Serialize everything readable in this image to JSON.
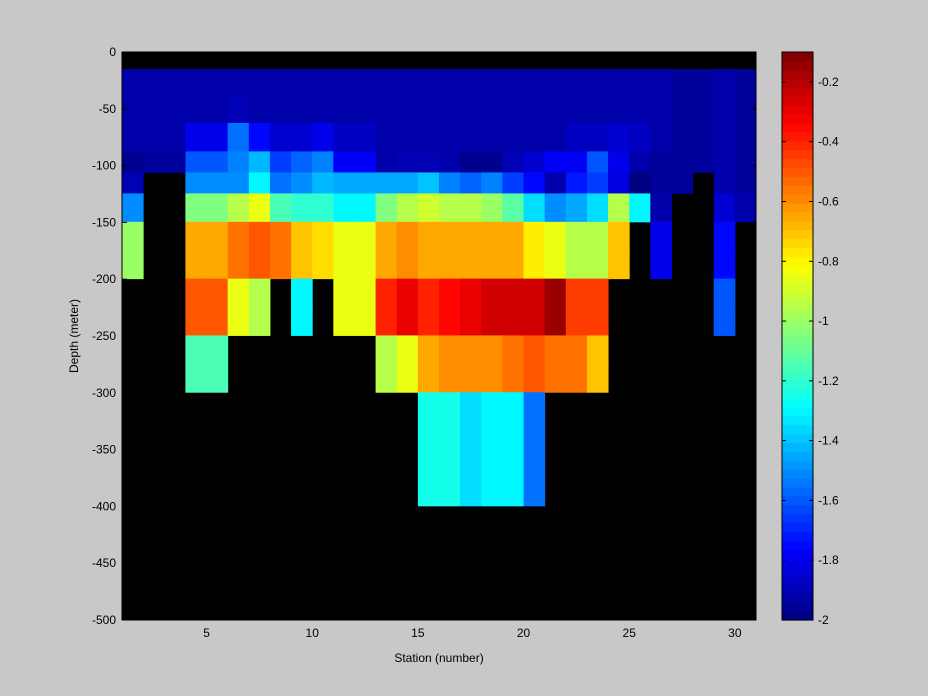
{
  "chart_data": {
    "type": "heatmap",
    "xlabel": "Station (number)",
    "ylabel": "Depth (meter)",
    "xlim": [
      1,
      31
    ],
    "ylim": [
      -500,
      0
    ],
    "xticks": [
      5,
      10,
      15,
      20,
      25,
      30
    ],
    "yticks": [
      0,
      -50,
      -100,
      -150,
      -200,
      -250,
      -300,
      -350,
      -400,
      -450,
      -500
    ],
    "colorbar": {
      "colormap": "jet",
      "clim": [
        -2.0,
        -0.1
      ],
      "ticks": [
        -0.2,
        -0.4,
        -0.6,
        -0.8,
        -1,
        -1.2,
        -1.4,
        -1.6,
        -1.8,
        -2
      ]
    },
    "no_data_color": "#000000",
    "stations": [
      1,
      2,
      3,
      4,
      5,
      6,
      7,
      8,
      9,
      10,
      11,
      12,
      13,
      14,
      15,
      16,
      17,
      18,
      19,
      20,
      21,
      22,
      23,
      24,
      25,
      26,
      27,
      28,
      29,
      30
    ],
    "depths": [
      -5,
      -25,
      -50,
      -75,
      -100,
      -112,
      -137,
      -162,
      -187,
      -212,
      -237,
      -262,
      -287,
      -312,
      -337,
      -362,
      -387
    ],
    "values": [
      [
        null,
        null,
        null,
        null,
        null,
        null,
        null,
        null,
        null,
        null,
        null,
        null,
        null,
        null,
        null,
        null,
        null,
        null,
        null,
        null,
        null,
        null,
        null,
        null,
        null,
        null,
        null,
        null,
        null,
        null
      ],
      [
        -1.92,
        -1.92,
        -1.92,
        -1.92,
        -1.92,
        -1.92,
        -1.92,
        -1.92,
        -1.92,
        -1.92,
        -1.92,
        -1.92,
        -1.92,
        -1.92,
        -1.92,
        -1.92,
        -1.92,
        -1.92,
        -1.92,
        -1.92,
        -1.92,
        -1.92,
        -1.92,
        -1.92,
        -1.92,
        -1.92,
        -1.95,
        -1.95,
        -1.92,
        -1.95
      ],
      [
        -1.92,
        -1.92,
        -1.92,
        -1.92,
        -1.92,
        -1.9,
        -1.92,
        -1.92,
        -1.92,
        -1.92,
        -1.92,
        -1.92,
        -1.92,
        -1.92,
        -1.92,
        -1.92,
        -1.92,
        -1.92,
        -1.92,
        -1.92,
        -1.92,
        -1.92,
        -1.92,
        -1.92,
        -1.92,
        -1.92,
        -1.95,
        -1.95,
        -1.92,
        -1.95
      ],
      [
        -1.92,
        -1.92,
        -1.92,
        -1.8,
        -1.8,
        -1.55,
        -1.75,
        -1.85,
        -1.85,
        -1.8,
        -1.88,
        -1.88,
        -1.92,
        -1.92,
        -1.92,
        -1.92,
        -1.92,
        -1.92,
        -1.92,
        -1.92,
        -1.92,
        -1.88,
        -1.88,
        -1.85,
        -1.88,
        -1.92,
        -1.95,
        -1.95,
        -1.92,
        -1.95
      ],
      [
        -1.97,
        -1.95,
        -1.95,
        -1.6,
        -1.6,
        -1.52,
        -1.42,
        -1.65,
        -1.58,
        -1.52,
        -1.78,
        -1.78,
        -1.92,
        -1.9,
        -1.9,
        -1.92,
        -1.97,
        -1.97,
        -1.9,
        -1.85,
        -1.78,
        -1.78,
        -1.6,
        -1.8,
        -1.92,
        -1.95,
        -1.95,
        -1.95,
        -1.92,
        -1.95
      ],
      [
        -1.9,
        null,
        null,
        -1.5,
        -1.5,
        -1.5,
        -1.3,
        -1.55,
        -1.5,
        -1.42,
        -1.45,
        -1.45,
        -1.45,
        -1.45,
        -1.4,
        -1.52,
        -1.58,
        -1.52,
        -1.65,
        -1.75,
        -1.92,
        -1.72,
        -1.65,
        -1.82,
        -2.0,
        -1.95,
        -1.95,
        null,
        -1.92,
        -1.95
      ],
      [
        -1.5,
        null,
        null,
        -1.05,
        -1.05,
        -0.95,
        -0.85,
        -1.15,
        -1.2,
        -1.2,
        -1.3,
        -1.3,
        -1.05,
        -0.95,
        -0.9,
        -0.95,
        -0.95,
        -1.0,
        -1.12,
        -1.35,
        -1.5,
        -1.45,
        -1.35,
        -0.95,
        -1.3,
        -1.92,
        null,
        null,
        -1.85,
        -1.92
      ],
      [
        -1.0,
        null,
        null,
        -0.65,
        -0.65,
        -0.55,
        -0.5,
        -0.55,
        -0.7,
        -0.75,
        -0.85,
        -0.85,
        -0.65,
        -0.6,
        -0.65,
        -0.65,
        -0.65,
        -0.65,
        -0.65,
        -0.78,
        -0.85,
        -0.95,
        -0.95,
        -0.7,
        null,
        -1.8,
        null,
        null,
        -1.75,
        null
      ],
      [
        -1.0,
        null,
        null,
        -0.65,
        -0.65,
        -0.55,
        -0.5,
        -0.55,
        -0.7,
        -0.75,
        -0.85,
        -0.85,
        -0.65,
        -0.6,
        -0.65,
        -0.65,
        -0.65,
        -0.65,
        -0.65,
        -0.78,
        -0.85,
        -0.95,
        -0.95,
        -0.7,
        null,
        -1.8,
        null,
        null,
        -1.75,
        null
      ],
      [
        null,
        null,
        null,
        -0.5,
        -0.5,
        -0.85,
        -0.95,
        null,
        -1.3,
        null,
        -0.85,
        -0.85,
        -0.4,
        -0.3,
        -0.4,
        -0.35,
        -0.3,
        -0.25,
        -0.25,
        -0.25,
        -0.15,
        -0.45,
        -0.45,
        null,
        null,
        null,
        null,
        null,
        -1.6,
        null
      ],
      [
        null,
        null,
        null,
        -0.5,
        -0.5,
        -0.85,
        -0.95,
        null,
        -1.3,
        null,
        -0.85,
        -0.85,
        -0.4,
        -0.3,
        -0.4,
        -0.35,
        -0.3,
        -0.25,
        -0.25,
        -0.25,
        -0.15,
        -0.45,
        -0.45,
        null,
        null,
        null,
        null,
        null,
        -1.6,
        null
      ],
      [
        null,
        null,
        null,
        -1.15,
        -1.15,
        null,
        null,
        null,
        null,
        null,
        null,
        null,
        -0.95,
        -0.85,
        -0.65,
        -0.6,
        -0.6,
        -0.6,
        -0.55,
        -0.5,
        -0.55,
        -0.55,
        -0.7,
        null,
        null,
        null,
        null,
        null,
        null,
        null
      ],
      [
        null,
        null,
        null,
        -1.15,
        -1.15,
        null,
        null,
        null,
        null,
        null,
        null,
        null,
        -0.95,
        -0.85,
        -0.65,
        -0.6,
        -0.6,
        -0.6,
        -0.55,
        -0.5,
        -0.55,
        -0.55,
        -0.7,
        null,
        null,
        null,
        null,
        null,
        null,
        null
      ],
      [
        null,
        null,
        null,
        null,
        null,
        null,
        null,
        null,
        null,
        null,
        null,
        null,
        null,
        null,
        -1.25,
        -1.25,
        -1.35,
        -1.3,
        -1.3,
        -1.55,
        null,
        null,
        null,
        null,
        null,
        null,
        null,
        null,
        null,
        null
      ],
      [
        null,
        null,
        null,
        null,
        null,
        null,
        null,
        null,
        null,
        null,
        null,
        null,
        null,
        null,
        -1.25,
        -1.25,
        -1.35,
        -1.3,
        -1.3,
        -1.55,
        null,
        null,
        null,
        null,
        null,
        null,
        null,
        null,
        null,
        null
      ],
      [
        null,
        null,
        null,
        null,
        null,
        null,
        null,
        null,
        null,
        null,
        null,
        null,
        null,
        null,
        -1.25,
        -1.25,
        -1.35,
        -1.3,
        -1.3,
        -1.55,
        null,
        null,
        null,
        null,
        null,
        null,
        null,
        null,
        null,
        null
      ],
      [
        null,
        null,
        null,
        null,
        null,
        null,
        null,
        null,
        null,
        null,
        null,
        null,
        null,
        null,
        -1.25,
        -1.25,
        -1.35,
        -1.3,
        -1.3,
        -1.55,
        null,
        null,
        null,
        null,
        null,
        null,
        null,
        null,
        null,
        null
      ]
    ]
  }
}
